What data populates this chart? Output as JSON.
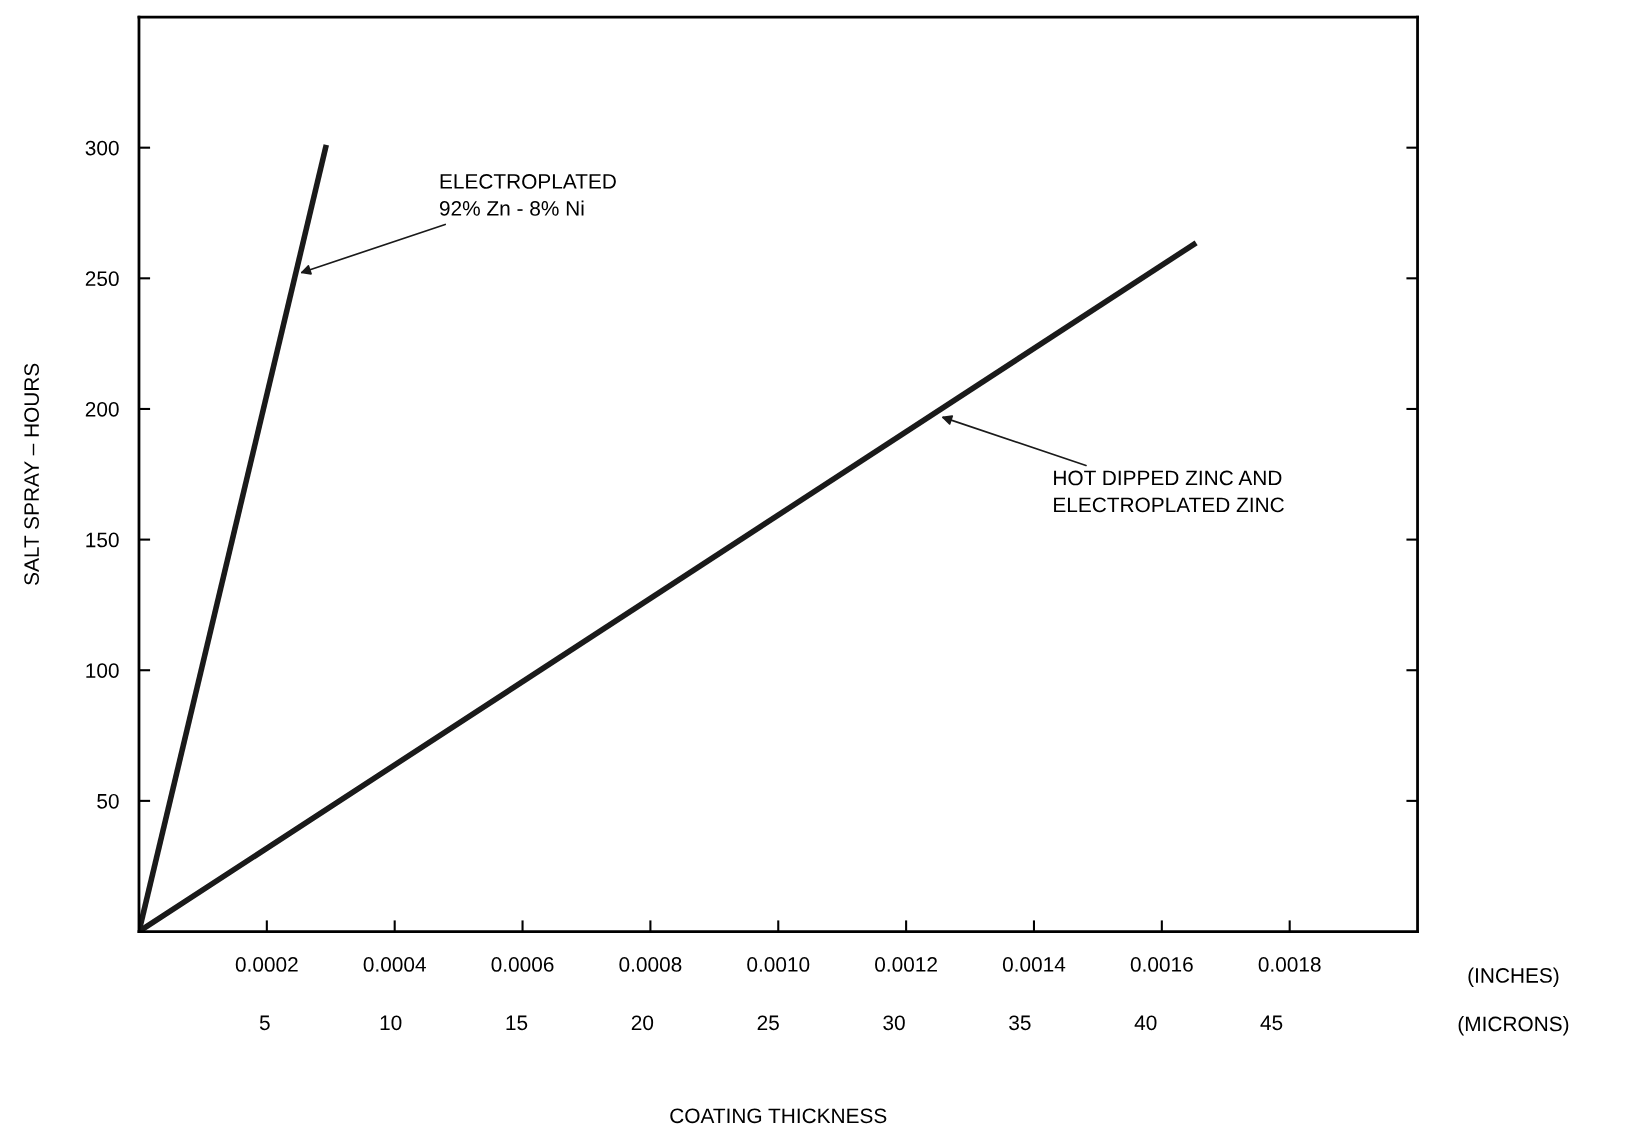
{
  "chart_data": {
    "type": "line",
    "xlabel": "COATING THICKNESS",
    "ylabel": "SALT SPRAY – HOURS",
    "xlim": [
      0,
      0.002
    ],
    "xticks": [
      {
        "value": 0.0002,
        "label": "0.0002"
      },
      {
        "value": 0.0004,
        "label": "0.0004"
      },
      {
        "value": 0.0006,
        "label": "0.0006"
      },
      {
        "value": 0.0008,
        "label": "0.0008"
      },
      {
        "value": 0.001,
        "label": "0.0010"
      },
      {
        "value": 0.0012,
        "label": "0.0012"
      },
      {
        "value": 0.0014,
        "label": "0.0014"
      },
      {
        "value": 0.0016,
        "label": "0.0016"
      },
      {
        "value": 0.0018,
        "label": "0.0018"
      }
    ],
    "x2lim": [
      0,
      50.8
    ],
    "x2ticks": [
      5,
      10,
      15,
      20,
      25,
      30,
      35,
      40,
      45
    ],
    "ylim": [
      0,
      350
    ],
    "yticks": [
      50,
      100,
      150,
      200,
      250,
      300
    ],
    "grid": false,
    "legend": false,
    "marker": "none",
    "line_style": "solid",
    "series": [
      {
        "color": "#1a1a1a",
        "x": [
          0,
          0.000292
        ],
        "values": [
          0,
          300
        ]
      },
      {
        "color": "#1a1a1a",
        "x": [
          0,
          0.00165
        ],
        "values": [
          0,
          263
        ]
      }
    ],
    "annotations": [
      "(INCHES)",
      "(MICRONS)",
      {
        "text": "ELECTROPLATED\n92% Zn - 8% Ni",
        "x": 0.000252,
        "y": 252
      },
      {
        "text": "HOT DIPPED ZINC AND\nELECTROPLATED ZINC",
        "x": 0.001255,
        "y": 197
      }
    ]
  }
}
